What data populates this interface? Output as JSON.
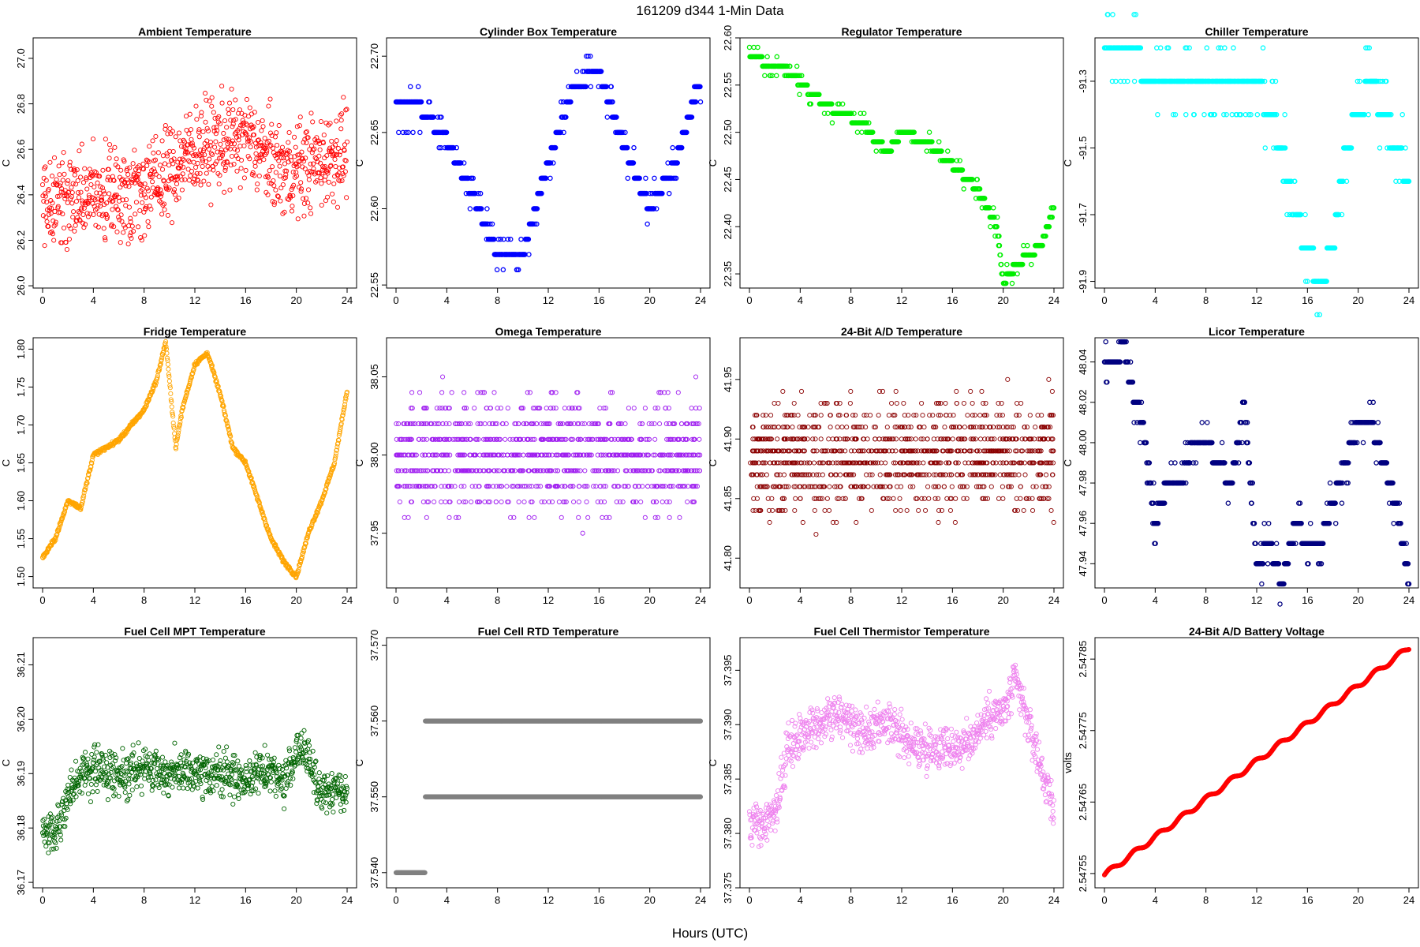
{
  "figure": {
    "title": "161209    d344    1-Min Data",
    "xlabel": "Hours (UTC)"
  },
  "chart_data": [
    {
      "type": "scatter",
      "title": "Ambient Temperature",
      "ylabel": "C",
      "color": "#ff0000",
      "kind": "noise",
      "xlim": [
        0,
        24
      ],
      "x_ticks": [
        0,
        4,
        8,
        12,
        16,
        20,
        24
      ],
      "ylim": [
        25.99,
        27.09
      ],
      "y_ticks": [
        26.0,
        26.2,
        26.4,
        26.6,
        26.8,
        27.0
      ],
      "y_tick_labels": [
        "26.0",
        "26.2",
        "26.4",
        "26.6",
        "26.8",
        "27.0"
      ],
      "trend_hours": [
        0,
        2,
        6,
        9,
        12,
        16,
        19,
        22,
        24
      ],
      "trend_values": [
        26.38,
        26.38,
        26.4,
        26.45,
        26.6,
        26.65,
        26.5,
        26.55,
        26.6
      ],
      "spread": 0.18
    },
    {
      "type": "scatter",
      "title": "Cylinder Box Temperature",
      "ylabel": "C",
      "color": "#0000ff",
      "kind": "step",
      "xlim": [
        0,
        24
      ],
      "x_ticks": [
        0,
        4,
        8,
        12,
        16,
        20,
        24
      ],
      "ylim": [
        22.548,
        22.712
      ],
      "y_ticks": [
        22.55,
        22.6,
        22.65,
        22.7
      ],
      "y_tick_labels": [
        "22.55",
        "22.60",
        "22.65",
        "22.70"
      ],
      "trend_hours": [
        0,
        2,
        4,
        6,
        8,
        10,
        12,
        14,
        16,
        18,
        20,
        22,
        24
      ],
      "trend_values": [
        22.665,
        22.665,
        22.645,
        22.61,
        22.57,
        22.57,
        22.63,
        22.68,
        22.69,
        22.64,
        22.6,
        22.63,
        22.685
      ],
      "quantum": 0.01
    },
    {
      "type": "scatter",
      "title": "Regulator Temperature",
      "ylabel": "C",
      "color": "#00ee00",
      "kind": "step",
      "xlim": [
        0,
        24
      ],
      "x_ticks": [
        0,
        4,
        8,
        12,
        16,
        20,
        24
      ],
      "ylim": [
        22.335,
        22.6
      ],
      "y_ticks": [
        22.35,
        22.4,
        22.45,
        22.5,
        22.55,
        22.6
      ],
      "y_tick_labels": [
        "22.35",
        "22.40",
        "22.45",
        "22.50",
        "22.55",
        "22.60"
      ],
      "trend_hours": [
        0,
        1,
        3,
        5,
        7,
        9,
        10,
        11,
        12,
        14,
        16,
        18,
        19.5,
        20,
        21,
        23,
        24
      ],
      "trend_values": [
        22.585,
        22.575,
        22.565,
        22.54,
        22.52,
        22.51,
        22.49,
        22.48,
        22.5,
        22.49,
        22.465,
        22.44,
        22.4,
        22.34,
        22.36,
        22.38,
        22.42
      ],
      "quantum": 0.01
    },
    {
      "type": "scatter",
      "title": "Chiller Temperature",
      "ylabel": "C",
      "color": "#00ffff",
      "kind": "step",
      "xlim": [
        0,
        24
      ],
      "x_ticks": [
        0,
        4,
        8,
        12,
        16,
        20,
        24
      ],
      "ylim": [
        -91.92,
        -91.17
      ],
      "y_ticks": [
        -91.9,
        -91.7,
        -91.5,
        -91.3
      ],
      "y_tick_labels": [
        "-91.9",
        "-91.7",
        "-91.5",
        "-91.3"
      ],
      "trend_hours": [
        0,
        2.7,
        3,
        6,
        7,
        12,
        13,
        14,
        15,
        16,
        17,
        18,
        19,
        20,
        21,
        22,
        23,
        24
      ],
      "trend_values": [
        -91.2,
        -91.2,
        -91.3,
        -91.3,
        -91.3,
        -91.3,
        -91.4,
        -91.5,
        -91.7,
        -91.8,
        -91.9,
        -91.8,
        -91.5,
        -91.4,
        -91.3,
        -91.4,
        -91.5,
        -91.6
      ],
      "quantum": 0.1
    },
    {
      "type": "scatter",
      "title": "Fridge Temperature",
      "ylabel": "C",
      "color": "#ffa500",
      "kind": "smooth",
      "xlim": [
        0,
        24
      ],
      "x_ticks": [
        0,
        4,
        8,
        12,
        16,
        20,
        24
      ],
      "ylim": [
        1.485,
        1.815
      ],
      "y_ticks": [
        1.5,
        1.55,
        1.6,
        1.65,
        1.7,
        1.75,
        1.8
      ],
      "y_tick_labels": [
        "1.50",
        "1.55",
        "1.60",
        "1.65",
        "1.70",
        "1.75",
        "1.80"
      ],
      "trend_hours": [
        0,
        1,
        2,
        3,
        4,
        6,
        8,
        9,
        9.7,
        10.5,
        11,
        12,
        13,
        14,
        15,
        16,
        17,
        18,
        19,
        20,
        21,
        22,
        23,
        24
      ],
      "trend_values": [
        1.525,
        1.55,
        1.6,
        1.59,
        1.66,
        1.68,
        1.72,
        1.76,
        1.81,
        1.67,
        1.72,
        1.78,
        1.795,
        1.74,
        1.67,
        1.65,
        1.6,
        1.55,
        1.52,
        1.5,
        1.56,
        1.6,
        1.65,
        1.745
      ]
    },
    {
      "type": "scatter",
      "title": "Omega Temperature",
      "ylabel": "C",
      "color": "#a020f0",
      "kind": "band",
      "xlim": [
        0,
        24
      ],
      "x_ticks": [
        0,
        4,
        8,
        12,
        16,
        20,
        24
      ],
      "ylim": [
        37.915,
        38.075
      ],
      "y_ticks": [
        37.95,
        38.0,
        38.05
      ],
      "y_tick_labels": [
        "37.95",
        "38.00",
        "38.05"
      ],
      "trend_hours": [
        0,
        24
      ],
      "trend_values": [
        38.0,
        38.0
      ],
      "spread": 0.035,
      "quantum": 0.01
    },
    {
      "type": "scatter",
      "title": "24-Bit A/D Temperature",
      "ylabel": "C",
      "color": "#8b0000",
      "kind": "band",
      "xlim": [
        0,
        24
      ],
      "x_ticks": [
        0,
        4,
        8,
        12,
        16,
        20,
        24
      ],
      "ylim": [
        41.775,
        41.985
      ],
      "y_ticks": [
        41.8,
        41.85,
        41.9,
        41.95
      ],
      "y_tick_labels": [
        "41.80",
        "41.85",
        "41.90",
        "41.95"
      ],
      "trend_hours": [
        0,
        24
      ],
      "trend_values": [
        41.885,
        41.885
      ],
      "spread": 0.045,
      "quantum": 0.01
    },
    {
      "type": "scatter",
      "title": "Licor Temperature",
      "ylabel": "C",
      "color": "#000080",
      "kind": "step",
      "xlim": [
        0,
        24
      ],
      "x_ticks": [
        0,
        4,
        8,
        12,
        16,
        20,
        24
      ],
      "ylim": [
        47.928,
        48.052
      ],
      "y_ticks": [
        47.94,
        47.96,
        47.98,
        48.0,
        48.02,
        48.04
      ],
      "y_tick_labels": [
        "47.94",
        "47.96",
        "47.98",
        "48.00",
        "48.02",
        "48.04"
      ],
      "trend_hours": [
        0,
        1,
        1.5,
        2,
        3,
        4,
        5,
        6,
        7,
        8,
        9,
        10,
        11,
        12,
        13,
        14,
        15,
        16,
        17,
        18,
        19,
        20,
        21,
        22,
        23,
        24
      ],
      "trend_values": [
        48.04,
        48.04,
        48.05,
        48.03,
        48.01,
        47.96,
        47.98,
        47.98,
        48.0,
        48.0,
        47.99,
        47.98,
        48.02,
        47.94,
        47.95,
        47.93,
        47.96,
        47.95,
        47.95,
        47.97,
        47.99,
        48.01,
        48.01,
        47.99,
        47.97,
        47.93
      ],
      "quantum": 0.01
    },
    {
      "type": "scatter",
      "title": "Fuel Cell MPT Temperature",
      "ylabel": "C",
      "color": "#006400",
      "kind": "noise",
      "xlim": [
        0,
        24
      ],
      "x_ticks": [
        0,
        4,
        8,
        12,
        16,
        20,
        24
      ],
      "ylim": [
        36.169,
        36.215
      ],
      "y_ticks": [
        36.17,
        36.18,
        36.19,
        36.2,
        36.21
      ],
      "y_tick_labels": [
        "36.17",
        "36.18",
        "36.19",
        "36.20",
        "36.21"
      ],
      "trend_hours": [
        0,
        1,
        2,
        3,
        4,
        6,
        8,
        10,
        12,
        14,
        16,
        18,
        19,
        20,
        21,
        22,
        23,
        24
      ],
      "trend_values": [
        36.18,
        36.179,
        36.185,
        36.19,
        36.191,
        36.19,
        36.191,
        36.19,
        36.19,
        36.19,
        36.189,
        36.191,
        36.188,
        36.194,
        36.193,
        36.186,
        36.187,
        36.187
      ],
      "spread": 0.0035
    },
    {
      "type": "scatter",
      "title": "Fuel Cell RTD Temperature",
      "ylabel": "C",
      "color": "#808080",
      "kind": "levels",
      "xlim": [
        0,
        24
      ],
      "x_ticks": [
        0,
        4,
        8,
        12,
        16,
        20,
        24
      ],
      "ylim": [
        37.538,
        37.571
      ],
      "y_ticks": [
        37.54,
        37.55,
        37.56,
        37.57
      ],
      "y_tick_labels": [
        "37.540",
        "37.550",
        "37.560",
        "37.570"
      ],
      "levels": [
        37.54,
        37.55,
        37.56
      ]
    },
    {
      "type": "scatter",
      "title": "Fuel Cell Thermistor Temperature",
      "ylabel": "C",
      "color": "#ee82ee",
      "kind": "noise",
      "xlim": [
        0,
        24
      ],
      "x_ticks": [
        0,
        4,
        8,
        12,
        16,
        20,
        24
      ],
      "ylim": [
        37.375,
        37.398
      ],
      "y_ticks": [
        37.375,
        37.38,
        37.385,
        37.39,
        37.395
      ],
      "y_tick_labels": [
        "37.375",
        "37.380",
        "37.385",
        "37.390",
        "37.395"
      ],
      "trend_hours": [
        0,
        2,
        3,
        5,
        7,
        9,
        11,
        13,
        15,
        17,
        19,
        20,
        21,
        22,
        23,
        24
      ],
      "trend_values": [
        37.381,
        37.381,
        37.388,
        37.39,
        37.391,
        37.389,
        37.39,
        37.388,
        37.388,
        37.388,
        37.391,
        37.391,
        37.394,
        37.39,
        37.386,
        37.382
      ],
      "spread": 0.0018
    },
    {
      "type": "scatter",
      "title": "24-Bit A/D Battery Voltage",
      "ylabel": "volts",
      "color": "#ff0000",
      "kind": "smooth",
      "xlim": [
        0,
        24
      ],
      "x_ticks": [
        0,
        4,
        8,
        12,
        16,
        20,
        24
      ],
      "ylim": [
        2.54753,
        2.54788
      ],
      "y_ticks": [
        2.54755,
        2.54765,
        2.54775,
        2.54785
      ],
      "y_tick_labels": [
        "2.54755",
        "2.54765",
        "2.54775",
        "2.54785"
      ],
      "trend_hours": [
        0,
        24
      ],
      "trend_values": [
        2.547548,
        2.547866
      ],
      "wiggle": 3.5e-06
    }
  ]
}
